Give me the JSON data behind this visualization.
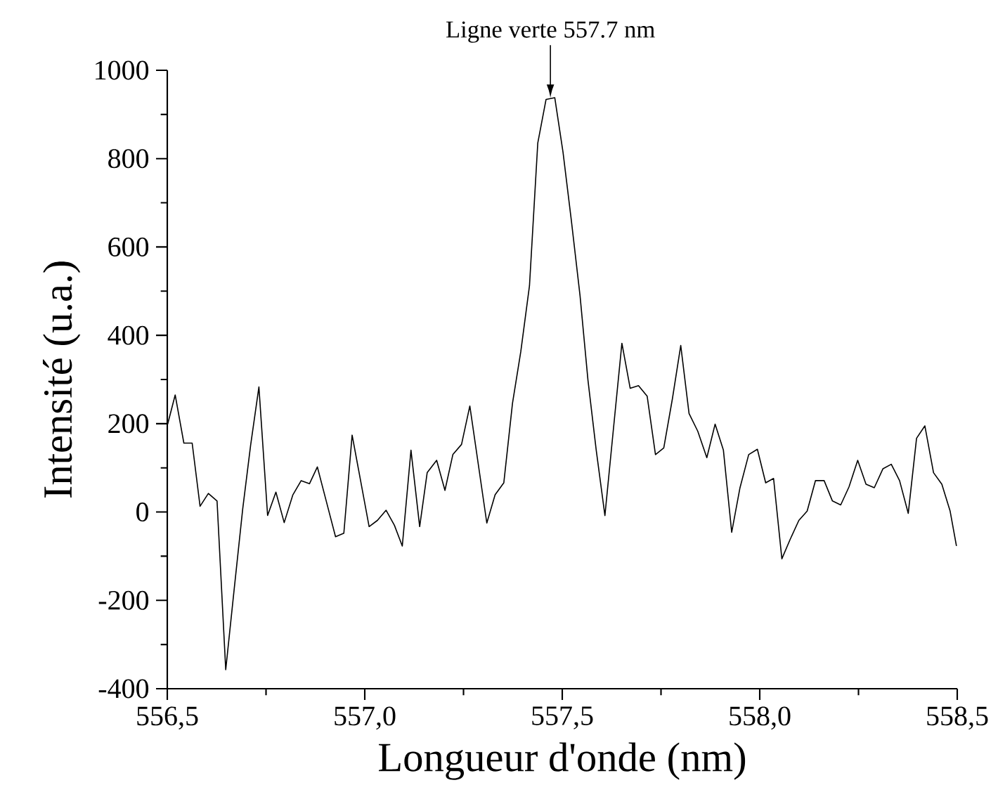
{
  "chart_data": {
    "type": "line",
    "xlabel": "Longueur d'onde (nm)",
    "ylabel": "Intensité (u.a.)",
    "annotations": [
      {
        "text": "Ligne verte 557.7 nm",
        "x": 557.47,
        "y": 938
      }
    ],
    "xlim": [
      556.5,
      558.5
    ],
    "xticks": [
      {
        "value": 556.5,
        "label": "556,5"
      },
      {
        "value": 556.75,
        "label": null
      },
      {
        "value": 557.0,
        "label": "557,0"
      },
      {
        "value": 557.25,
        "label": null
      },
      {
        "value": 557.5,
        "label": "557,5"
      },
      {
        "value": 557.75,
        "label": null
      },
      {
        "value": 558.0,
        "label": "558,0"
      },
      {
        "value": 558.25,
        "label": null
      },
      {
        "value": 558.5,
        "label": "558,5"
      }
    ],
    "ylim": [
      -400,
      1000
    ],
    "yticks": [
      -400,
      {
        "value": -300,
        "label": null
      },
      -200,
      {
        "value": -100,
        "label": null
      },
      0,
      {
        "value": 100,
        "label": null
      },
      200,
      {
        "value": 300,
        "label": null
      },
      400,
      {
        "value": 500,
        "label": null
      },
      600,
      {
        "value": 700,
        "label": null
      },
      800,
      {
        "value": 900,
        "label": null
      },
      1000
    ],
    "marker": "none",
    "line_style": "solid",
    "series": [
      {
        "color": "#000000",
        "x": [
          556.501,
          556.52,
          556.542,
          556.563,
          556.583,
          556.604,
          556.626,
          556.648,
          556.669,
          556.691,
          556.711,
          556.732,
          556.754,
          556.775,
          556.796,
          556.818,
          556.839,
          556.86,
          556.88,
          556.903,
          556.926,
          556.947,
          556.968,
          557.011,
          557.032,
          557.054,
          557.075,
          557.095,
          557.117,
          557.139,
          557.158,
          557.182,
          557.203,
          557.223,
          557.245,
          557.266,
          557.309,
          557.33,
          557.352,
          557.374,
          557.395,
          557.417,
          557.438,
          557.459,
          557.481,
          557.502,
          557.523,
          557.545,
          557.565,
          557.586,
          557.608,
          557.629,
          557.651,
          557.672,
          557.693,
          557.715,
          557.736,
          557.757,
          557.779,
          557.8,
          557.821,
          557.843,
          557.866,
          557.887,
          557.908,
          557.929,
          557.95,
          557.972,
          557.994,
          558.015,
          558.035,
          558.056,
          558.077,
          558.099,
          558.12,
          558.141,
          558.163,
          558.184,
          558.205,
          558.226,
          558.248,
          558.269,
          558.29,
          558.312,
          558.333,
          558.354,
          558.376,
          558.397,
          558.418,
          558.44,
          558.461,
          558.482,
          558.498
        ],
        "values": [
          199,
          265,
          156,
          156,
          13,
          42,
          25,
          -357,
          -178,
          7,
          151,
          283,
          -8,
          45,
          -24,
          39,
          71,
          64,
          102,
          23,
          -56,
          -48,
          174,
          -33,
          -19,
          4,
          -30,
          -77,
          140,
          -33,
          89,
          117,
          49,
          130,
          153,
          240,
          -25,
          39,
          66,
          246,
          363,
          512,
          835,
          934,
          938,
          814,
          660,
          490,
          299,
          140,
          -8,
          183,
          382,
          280,
          286,
          262,
          130,
          145,
          257,
          377,
          223,
          183,
          123,
          199,
          140,
          -46,
          55,
          130,
          142,
          66,
          76,
          -106,
          -62,
          -19,
          2,
          71,
          71,
          25,
          16,
          57,
          117,
          63,
          55,
          98,
          108,
          71,
          -3,
          167,
          195,
          89,
          63,
          2,
          -77
        ]
      }
    ]
  }
}
